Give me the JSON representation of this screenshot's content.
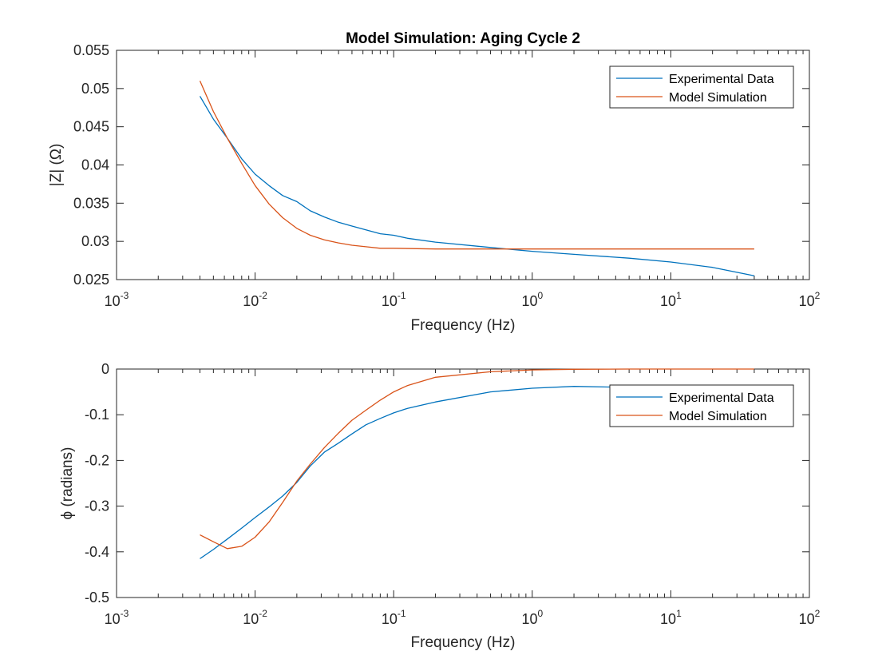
{
  "chart_data": [
    {
      "type": "line",
      "title": "Model Simulation: Aging Cycle 2",
      "xlabel": "Frequency (Hz)",
      "ylabel": "|Z| (Ω)",
      "xscale": "log",
      "xlim": [
        0.001,
        100
      ],
      "ylim": [
        0.025,
        0.055
      ],
      "xticks": [
        0.001,
        0.01,
        0.1,
        1,
        10,
        100
      ],
      "xtick_labels": [
        "10-3",
        "10-2",
        "10-1",
        "100",
        "101",
        "102"
      ],
      "yticks": [
        0.025,
        0.03,
        0.035,
        0.04,
        0.045,
        0.05,
        0.055
      ],
      "ytick_labels": [
        "0.025",
        "0.03",
        "0.035",
        "0.04",
        "0.045",
        "0.05",
        "0.055"
      ],
      "grid": false,
      "legend_position": "top-right",
      "series": [
        {
          "name": "Experimental Data",
          "color": "#0072BD",
          "x": [
            0.004,
            0.005,
            0.0063,
            0.008,
            0.01,
            0.0126,
            0.0158,
            0.02,
            0.025,
            0.0316,
            0.04,
            0.05,
            0.063,
            0.08,
            0.1,
            0.126,
            0.2,
            0.5,
            1,
            2,
            5,
            10,
            20,
            40
          ],
          "y": [
            0.049,
            0.046,
            0.0435,
            0.0408,
            0.0388,
            0.0373,
            0.036,
            0.0352,
            0.034,
            0.0332,
            0.0325,
            0.032,
            0.0315,
            0.031,
            0.0308,
            0.0304,
            0.0299,
            0.0292,
            0.0287,
            0.0283,
            0.0278,
            0.0273,
            0.0266,
            0.0255
          ]
        },
        {
          "name": "Model Simulation",
          "color": "#D95319",
          "x": [
            0.004,
            0.005,
            0.0063,
            0.008,
            0.01,
            0.0126,
            0.0158,
            0.02,
            0.025,
            0.0316,
            0.04,
            0.05,
            0.063,
            0.08,
            0.1,
            0.2,
            0.5,
            1,
            2,
            5,
            10,
            20,
            40
          ],
          "y": [
            0.051,
            0.047,
            0.0435,
            0.0402,
            0.0373,
            0.0349,
            0.0331,
            0.0317,
            0.0308,
            0.0302,
            0.0298,
            0.0295,
            0.0293,
            0.0291,
            0.0291,
            0.029,
            0.029,
            0.029,
            0.029,
            0.029,
            0.029,
            0.029,
            0.029
          ]
        }
      ]
    },
    {
      "type": "line",
      "title": "",
      "xlabel": "Frequency (Hz)",
      "ylabel": "ϕ (radians)",
      "xscale": "log",
      "xlim": [
        0.001,
        100
      ],
      "ylim": [
        -0.5,
        0
      ],
      "xticks": [
        0.001,
        0.01,
        0.1,
        1,
        10,
        100
      ],
      "xtick_labels": [
        "10-3",
        "10-2",
        "10-1",
        "100",
        "101",
        "102"
      ],
      "yticks": [
        -0.5,
        -0.4,
        -0.3,
        -0.2,
        -0.1,
        0
      ],
      "ytick_labels": [
        "-0.5",
        "-0.4",
        "-0.3",
        "-0.2",
        "-0.1",
        "0"
      ],
      "grid": false,
      "legend_position": "top-right",
      "series": [
        {
          "name": "Experimental Data",
          "color": "#0072BD",
          "x": [
            0.004,
            0.005,
            0.0063,
            0.008,
            0.01,
            0.0126,
            0.0158,
            0.02,
            0.025,
            0.0316,
            0.04,
            0.05,
            0.063,
            0.08,
            0.1,
            0.126,
            0.2,
            0.5,
            1,
            2,
            5
          ],
          "y": [
            -0.415,
            -0.395,
            -0.372,
            -0.348,
            -0.325,
            -0.302,
            -0.278,
            -0.248,
            -0.212,
            -0.182,
            -0.162,
            -0.142,
            -0.122,
            -0.108,
            -0.096,
            -0.086,
            -0.072,
            -0.05,
            -0.042,
            -0.038,
            -0.04
          ]
        },
        {
          "name": "Model Simulation",
          "color": "#D95319",
          "x": [
            0.004,
            0.005,
            0.0063,
            0.008,
            0.01,
            0.0126,
            0.0158,
            0.02,
            0.025,
            0.0316,
            0.04,
            0.05,
            0.063,
            0.08,
            0.1,
            0.126,
            0.2,
            0.5,
            1,
            2,
            5,
            10,
            20,
            40
          ],
          "y": [
            -0.363,
            -0.378,
            -0.393,
            -0.388,
            -0.368,
            -0.335,
            -0.292,
            -0.245,
            -0.208,
            -0.172,
            -0.14,
            -0.112,
            -0.09,
            -0.068,
            -0.05,
            -0.036,
            -0.018,
            -0.006,
            -0.002,
            -0.0005,
            0,
            0,
            0,
            0
          ]
        }
      ]
    }
  ]
}
